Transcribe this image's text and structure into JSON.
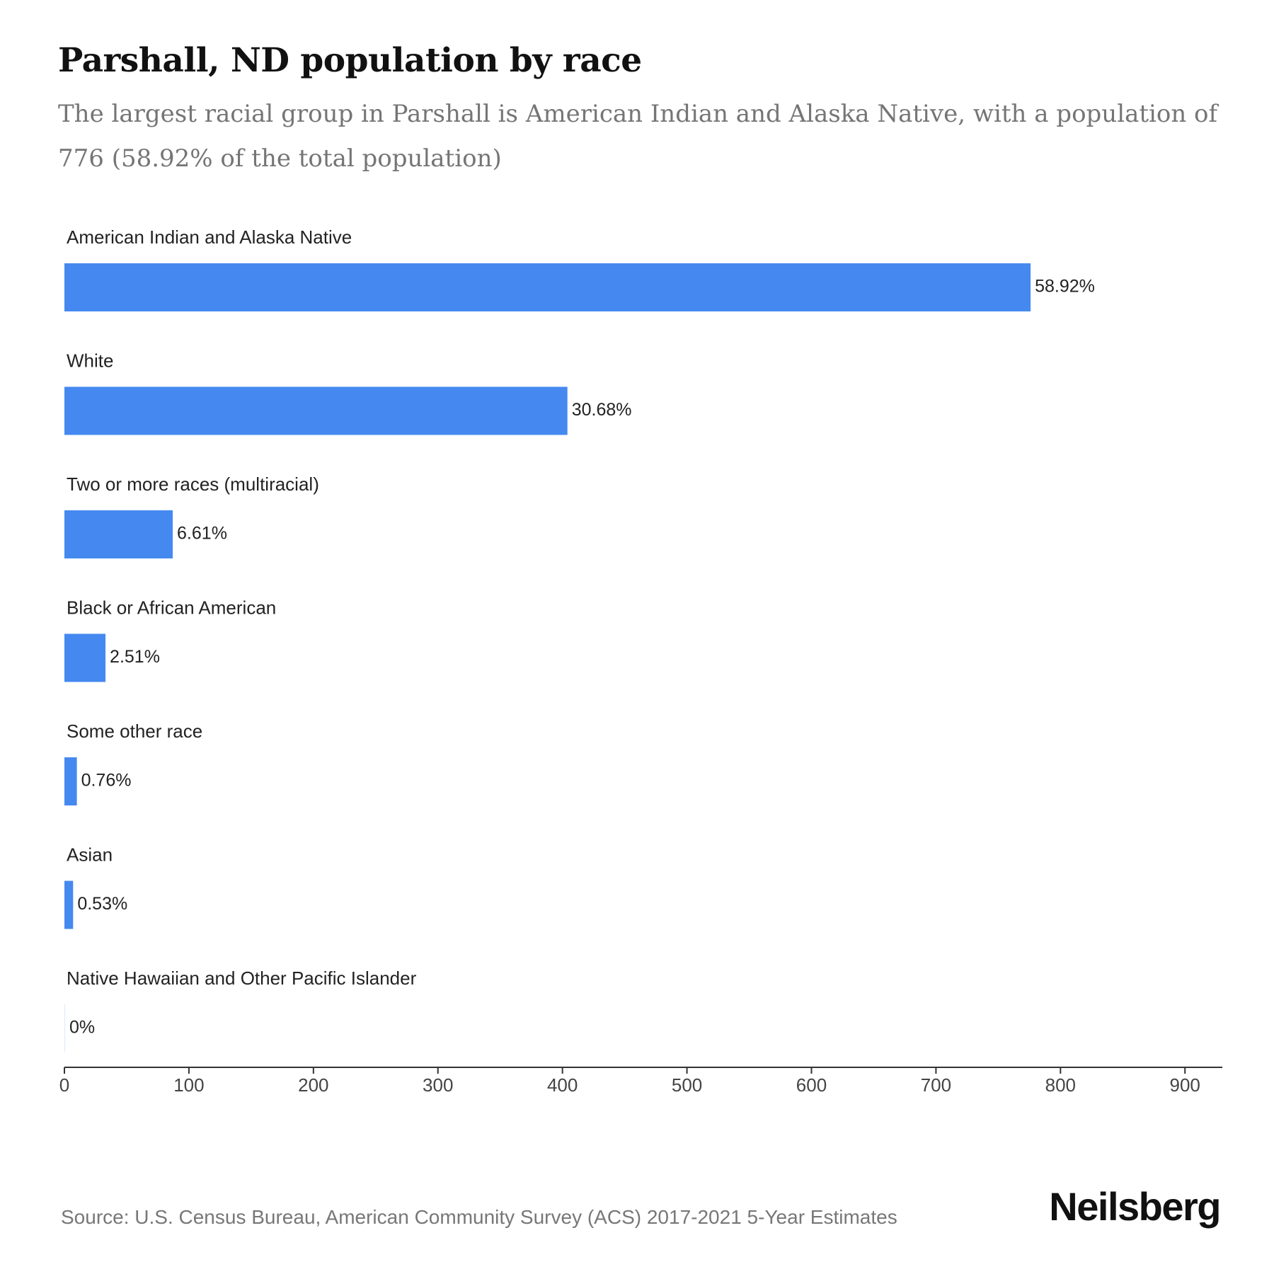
{
  "title": "Parshall, ND population by race",
  "subtitle": "The largest racial group in Parshall is American Indian and Alaska Native, with a population of 776 (58.92% of the total population)",
  "source": "Source: U.S. Census Bureau, American Community Survey (ACS) 2017-2021 5-Year Estimates",
  "brand": "Neilsberg",
  "colors": {
    "bar": "#4589f0",
    "axis": "#333333",
    "text": "#222222"
  },
  "chart_data": {
    "type": "bar",
    "orientation": "horizontal",
    "categories": [
      "American Indian and Alaska Native",
      "White",
      "Two or more races (multiracial)",
      "Black or African American",
      "Some other race",
      "Asian",
      "Native Hawaiian and Other Pacific Islander"
    ],
    "values": [
      776,
      404,
      87,
      33,
      10,
      7,
      0
    ],
    "data_labels": [
      "58.92%",
      "30.68%",
      "6.61%",
      "2.51%",
      "0.76%",
      "0.53%",
      "0%"
    ],
    "xlim": [
      0,
      930
    ],
    "xticks": [
      0,
      100,
      200,
      300,
      400,
      500,
      600,
      700,
      800,
      900
    ],
    "grid": false,
    "legend": "none"
  }
}
